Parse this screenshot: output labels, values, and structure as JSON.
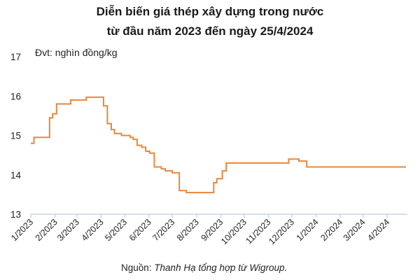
{
  "chart_data": {
    "type": "line",
    "title_line1": "Diễn biến giá thép xây dựng trong nước",
    "title_line2": "từ đầu năm 2023 đến ngày 25/4/2024",
    "unit_label": "Đvt: nghìn đồng/kg",
    "source_prefix": "Nguồn: ",
    "source_text": "Thanh Hạ tổng hợp từ Wigroup.",
    "ylim": [
      13,
      17
    ],
    "y_ticks": [
      "13",
      "14",
      "15",
      "16",
      "17"
    ],
    "x_ticks": [
      "1/2023",
      "2/2023",
      "3/2023",
      "4/2023",
      "5/2023",
      "6/2023",
      "7/2023",
      "8/2023",
      "9/2023",
      "10/2023",
      "11/2023",
      "12/2023",
      "1/2024",
      "2/2024",
      "3/2024",
      "4/2024"
    ],
    "grid": false,
    "line_color": "#e8873a",
    "axis_color": "#c9d6e8",
    "series": [
      {
        "x": [
          "2023-01-01",
          "2023-01-05",
          "2023-01-05",
          "2023-01-25",
          "2023-01-25",
          "2023-01-29",
          "2023-01-29",
          "2023-02-03",
          "2023-02-03",
          "2023-02-21",
          "2023-02-21",
          "2023-03-09",
          "2023-03-09",
          "2023-03-13",
          "2023-03-13",
          "2023-04-01",
          "2023-04-01",
          "2023-04-04",
          "2023-04-04",
          "2023-04-09",
          "2023-04-09",
          "2023-04-14",
          "2023-04-14",
          "2023-04-18",
          "2023-04-18",
          "2023-04-27",
          "2023-04-27",
          "2023-05-08",
          "2023-05-08",
          "2023-05-12",
          "2023-05-12",
          "2023-05-17",
          "2023-05-17",
          "2023-05-23",
          "2023-05-23",
          "2023-05-28",
          "2023-05-28",
          "2023-06-02",
          "2023-06-02",
          "2023-06-08",
          "2023-06-08",
          "2023-06-17",
          "2023-06-17",
          "2023-06-22",
          "2023-06-22",
          "2023-07-01",
          "2023-07-01",
          "2023-07-10",
          "2023-07-10",
          "2023-07-19",
          "2023-07-19",
          "2023-08-02",
          "2023-08-02",
          "2023-08-16",
          "2023-08-16",
          "2023-08-23",
          "2023-08-23",
          "2023-08-27",
          "2023-08-27",
          "2023-09-03",
          "2023-09-03",
          "2023-09-08",
          "2023-09-08",
          "2023-11-27",
          "2023-11-27",
          "2023-12-01",
          "2023-12-01",
          "2023-12-10",
          "2023-12-10",
          "2023-12-20",
          "2023-12-20",
          "2024-01-08",
          "2024-01-08",
          "2024-01-29",
          "2024-01-29",
          "2024-03-18",
          "2024-03-18",
          "2024-04-04",
          "2024-04-04",
          "2024-04-25"
        ],
        "y": [
          14.8,
          14.8,
          14.95,
          14.95,
          15.45,
          15.45,
          15.55,
          15.55,
          15.8,
          15.8,
          15.9,
          15.9,
          15.9,
          15.9,
          15.97,
          15.97,
          15.97,
          15.97,
          15.75,
          15.75,
          15.3,
          15.3,
          15.15,
          15.15,
          15.05,
          15.05,
          15.0,
          15.0,
          14.95,
          14.95,
          14.9,
          14.9,
          14.75,
          14.75,
          14.7,
          14.7,
          14.6,
          14.6,
          14.55,
          14.55,
          14.2,
          14.2,
          14.15,
          14.15,
          14.1,
          14.1,
          14.05,
          14.05,
          13.6,
          13.6,
          13.55,
          13.55,
          13.55,
          13.55,
          13.55,
          13.55,
          13.8,
          13.8,
          13.9,
          13.9,
          14.1,
          14.1,
          14.3,
          14.3,
          14.4,
          14.4,
          14.4,
          14.4,
          14.35,
          14.35,
          14.2,
          14.2,
          14.2,
          14.2,
          14.2,
          14.2,
          14.2,
          14.2,
          14.2,
          14.2
        ]
      }
    ]
  }
}
